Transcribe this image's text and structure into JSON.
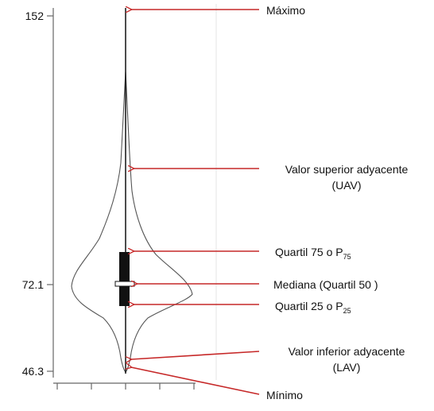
{
  "chart_data": {
    "type": "violin",
    "y_ticks": [
      "152",
      "72.1",
      "46.3"
    ],
    "values": {
      "maximo": 152,
      "mediana": 72.1,
      "minimo": 46.3
    }
  },
  "annotations": {
    "maximo": "Máximo",
    "uav_line1": "Valor superior adyacente",
    "uav_line2": "(UAV)",
    "q75_text": "Quartil  75 o P",
    "q75_sub": "75",
    "mediana": "Mediana (Quartil  50 )",
    "q25_text": "Quartil  25 o P",
    "q25_sub": "25",
    "lav_line1": "Valor inferior adyacente",
    "lav_line2": "(LAV)",
    "minimo": "Mínimo"
  },
  "colors": {
    "arrow": "#c62828",
    "outline": "#555555",
    "box": "#111111",
    "axis": "#666666",
    "guide": "#e6e6e6"
  }
}
